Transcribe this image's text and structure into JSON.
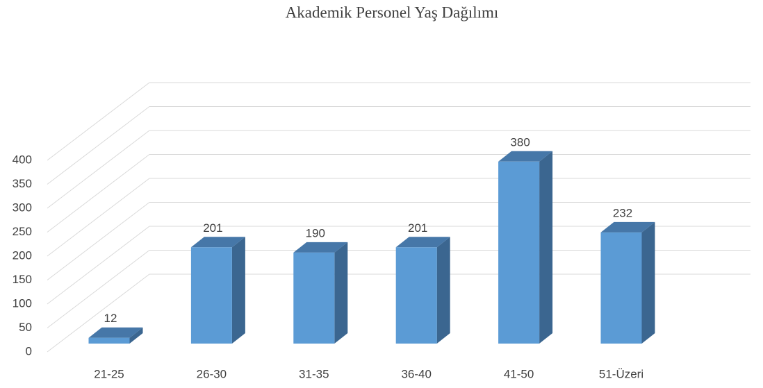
{
  "chart_data": {
    "type": "bar3d",
    "title": "Akademik Personel Yaş Dağılımı",
    "categories": [
      "21-25",
      "26-30",
      "31-35",
      "36-40",
      "41-50",
      "51-Üzeri"
    ],
    "values": [
      12,
      201,
      190,
      201,
      380,
      232
    ],
    "color": "#5b9bd5",
    "ylim": [
      0,
      400
    ],
    "yticks": [
      0,
      50,
      100,
      150,
      200,
      250,
      300,
      350,
      400
    ],
    "grid": true
  }
}
